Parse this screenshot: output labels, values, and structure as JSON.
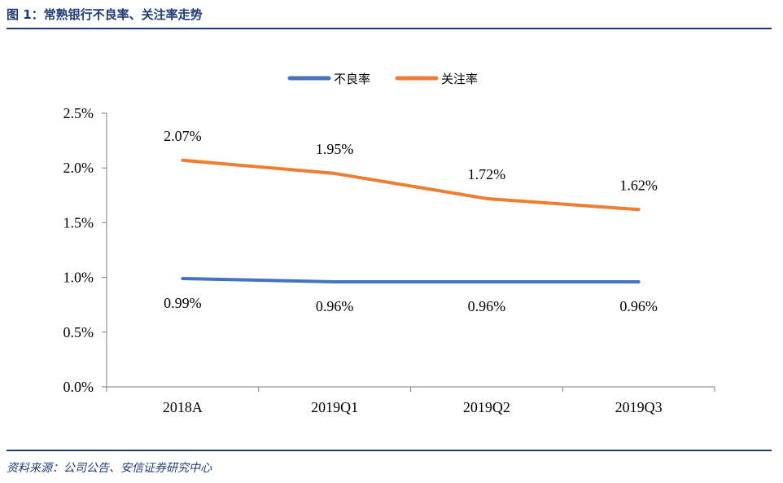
{
  "figure": {
    "title": "图 1：常熟银行不良率、关注率走势",
    "source": "资料来源：公司公告、安信证券研究中心"
  },
  "chart_data": {
    "type": "line",
    "categories": [
      "2018A",
      "2019Q1",
      "2019Q2",
      "2019Q3"
    ],
    "series": [
      {
        "name": "不良率",
        "values": [
          0.99,
          0.96,
          0.96,
          0.96
        ],
        "labels": [
          "0.99%",
          "0.96%",
          "0.96%",
          "0.96%"
        ],
        "label_position": "below",
        "color": "#4472c4"
      },
      {
        "name": "关注率",
        "values": [
          2.07,
          1.95,
          1.72,
          1.62
        ],
        "labels": [
          "2.07%",
          "1.95%",
          "1.72%",
          "1.62%"
        ],
        "label_position": "above",
        "color": "#ed7d31"
      }
    ],
    "ylim": [
      0,
      2.5
    ],
    "yticks": [
      0,
      0.5,
      1.0,
      1.5,
      2.0,
      2.5
    ],
    "ytick_labels": [
      "0.0%",
      "0.5%",
      "1.0%",
      "1.5%",
      "2.0%",
      "2.5%"
    ],
    "legend_position": "top-center",
    "grid": false,
    "xlabel": "",
    "ylabel": ""
  }
}
